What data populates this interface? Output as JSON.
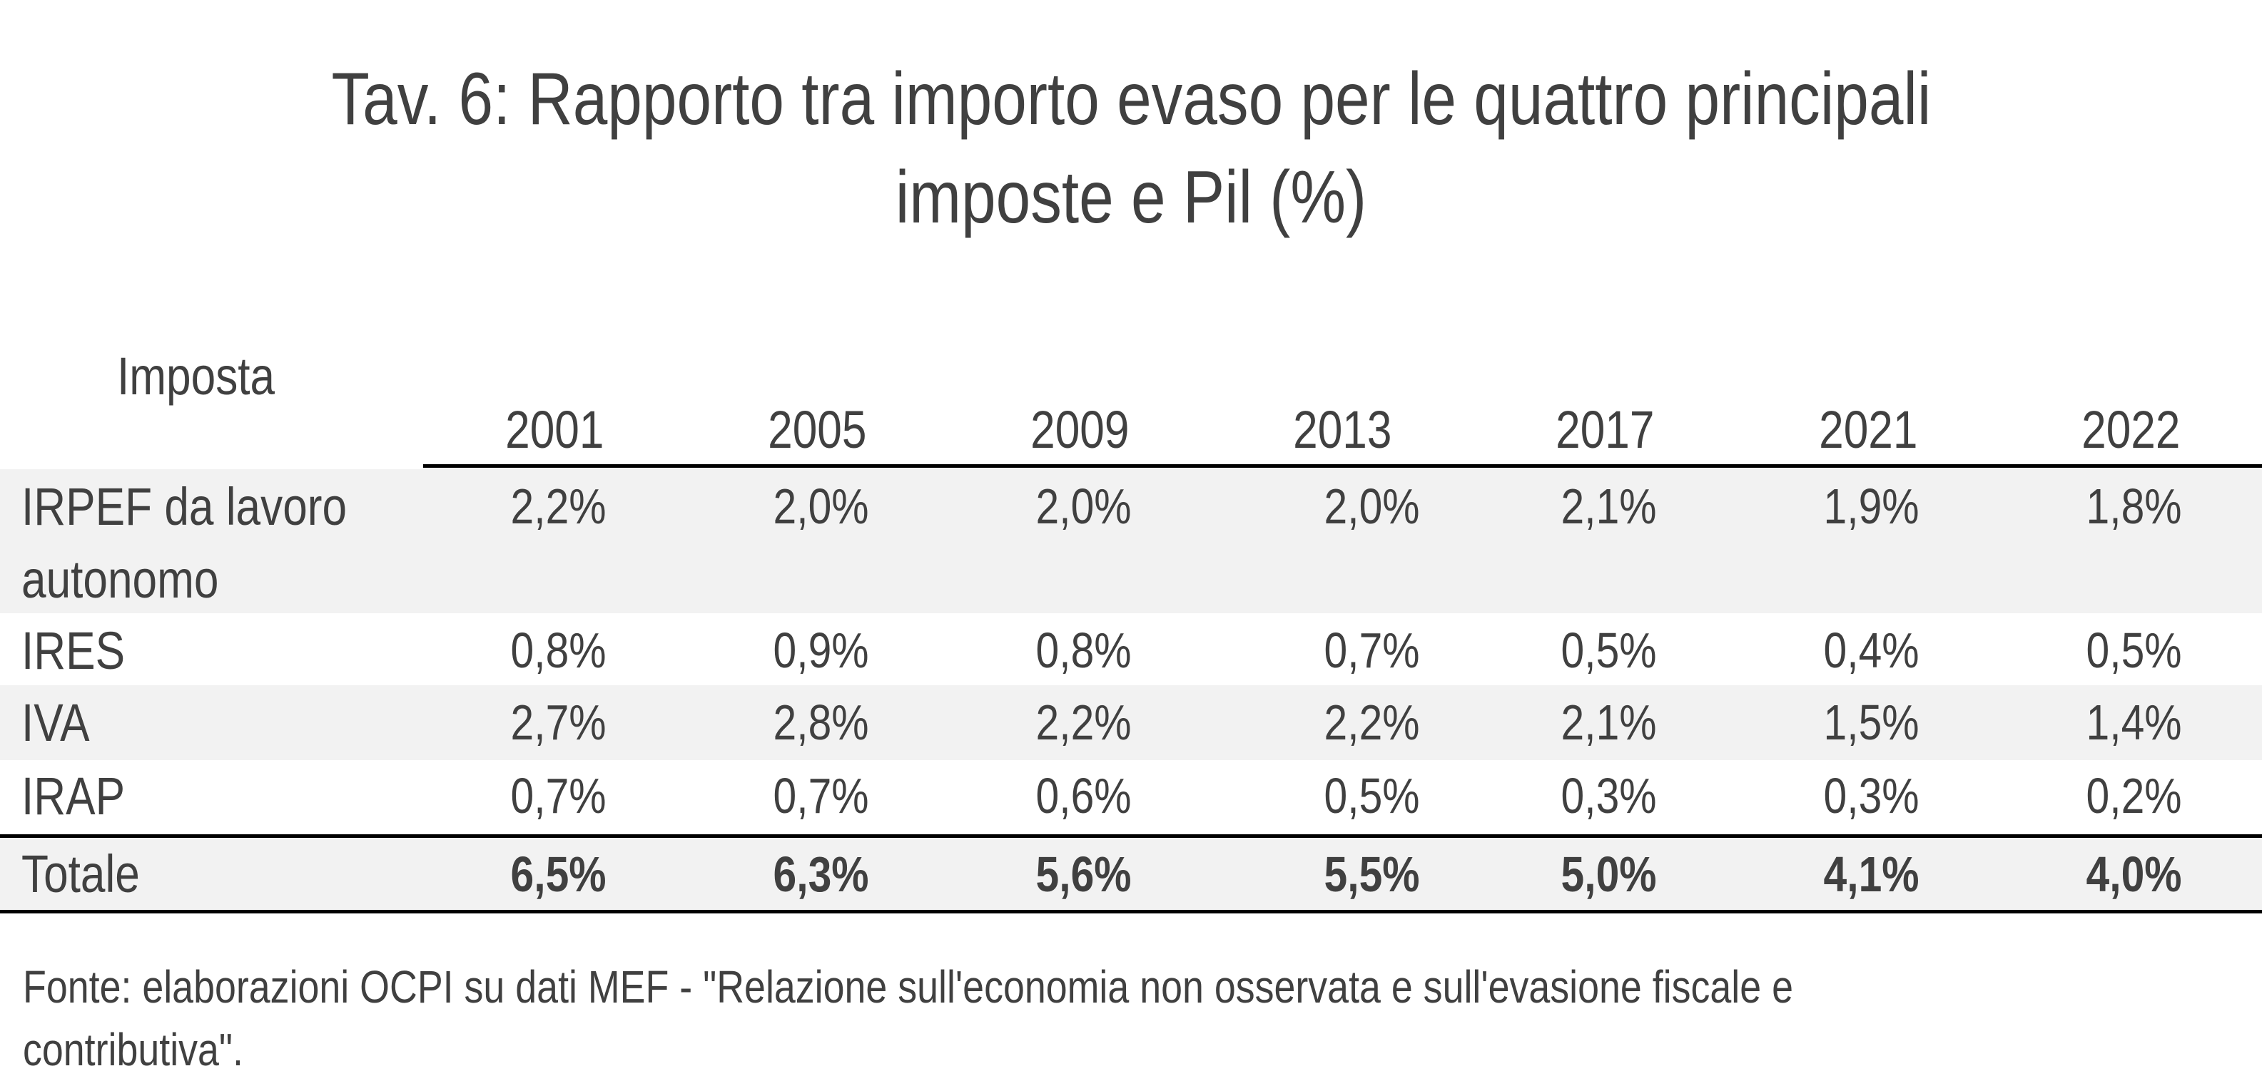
{
  "title": {
    "line1": "Tav. 6: Rapporto tra importo evaso per le quattro principali",
    "line2": "imposte e Pil (%)"
  },
  "table": {
    "row_header": "Imposta",
    "years": [
      "2001",
      "2005",
      "2009",
      "2013",
      "2017",
      "2021",
      "2022"
    ],
    "rows": [
      {
        "label_line1": "IRPEF da lavoro",
        "label_line2": "autonomo",
        "values": [
          "2,2%",
          "2,0%",
          "2,0%",
          "2,0%",
          "2,1%",
          "1,9%",
          "1,8%"
        ]
      },
      {
        "label_line1": "IRES",
        "values": [
          "0,8%",
          "0,9%",
          "0,8%",
          "0,7%",
          "0,5%",
          "0,4%",
          "0,5%"
        ]
      },
      {
        "label_line1": "IVA",
        "values": [
          "2,7%",
          "2,8%",
          "2,2%",
          "2,2%",
          "2,1%",
          "1,5%",
          "1,4%"
        ]
      },
      {
        "label_line1": "IRAP",
        "values": [
          "0,7%",
          "0,7%",
          "0,6%",
          "0,5%",
          "0,3%",
          "0,3%",
          "0,2%"
        ]
      }
    ],
    "total": {
      "label": "Totale",
      "values": [
        "6,5%",
        "6,3%",
        "5,6%",
        "5,5%",
        "5,0%",
        "4,1%",
        "4,0%"
      ]
    }
  },
  "note": {
    "line1": "Fonte: elaborazioni OCPI su dati MEF - \"Relazione sull'economia non osservata e sull'evasione fiscale e",
    "line2": "contributiva\"."
  },
  "colors": {
    "text": "#404040",
    "stripe": "#f2f2f2",
    "rule": "#000000"
  }
}
